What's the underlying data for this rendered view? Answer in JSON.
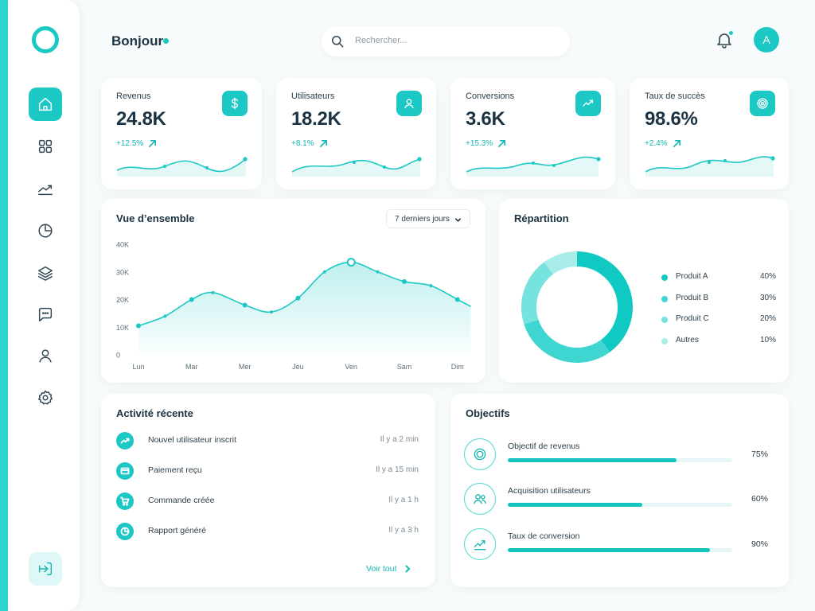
{
  "header": {
    "greeting": "Bonjour",
    "search_placeholder": "Rechercher...",
    "avatar_initial": "A"
  },
  "sidebar": {
    "items": [
      {
        "name": "home-icon",
        "active": true
      },
      {
        "name": "grid-icon",
        "active": false
      },
      {
        "name": "trend-icon",
        "active": false
      },
      {
        "name": "pie-chart-icon",
        "active": false
      },
      {
        "name": "layers-icon",
        "active": false
      },
      {
        "name": "chat-icon",
        "active": false
      },
      {
        "name": "user-icon",
        "active": false
      },
      {
        "name": "gear-icon",
        "active": false
      }
    ],
    "logout_icon": "logout-icon"
  },
  "kpis": [
    {
      "title": "Revenus",
      "value": "24.8K",
      "change": "+12.5%",
      "icon": "dollar-icon"
    },
    {
      "title": "Utilisateurs",
      "value": "18.2K",
      "change": "+8.1%",
      "icon": "user-icon"
    },
    {
      "title": "Conversions",
      "value": "3.6K",
      "change": "+15.3%",
      "icon": "trend-icon"
    },
    {
      "title": "Taux de succès",
      "value": "98.6%",
      "change": "+2.4%",
      "icon": "target-icon"
    }
  ],
  "overview": {
    "title": "Vue d’ensemble",
    "period": "7 derniers jours"
  },
  "repartition": {
    "title": "Répartition"
  },
  "chart_data": [
    {
      "type": "area",
      "title": "Vue d’ensemble",
      "categories": [
        "Lun",
        "Mar",
        "Mer",
        "Jeu",
        "Ven",
        "Sam",
        "Dim"
      ],
      "y_ticks": [
        "40K",
        "30K",
        "20K",
        "10K",
        "0"
      ],
      "ylim": [
        0,
        40000
      ],
      "x": [
        0,
        0.5,
        1,
        1.4,
        2,
        2.5,
        3,
        3.5,
        4,
        4.5,
        5,
        5.5,
        6,
        6.25
      ],
      "values": [
        10500,
        14000,
        20000,
        22500,
        18000,
        15500,
        20500,
        30000,
        33500,
        30000,
        26500,
        25000,
        20000,
        17500
      ],
      "highlight_index": 8,
      "color": "#1cc8c4",
      "grid": false
    },
    {
      "type": "pie",
      "title": "Répartition",
      "labels": [
        "Produit A",
        "Produit B",
        "Produit C",
        "Autres"
      ],
      "values": [
        40,
        30,
        20,
        10
      ],
      "display": [
        "40%",
        "30%",
        "20%",
        "10%"
      ],
      "colors": [
        "#11c9c3",
        "#3fd5d0",
        "#76e3df",
        "#a8edea"
      ]
    }
  ],
  "activity": {
    "title": "Activité récente",
    "items": [
      {
        "label": "Nouvel utilisateur inscrit",
        "time": "Il y a 2 min",
        "icon": "trend-icon"
      },
      {
        "label": "Paiement reçu",
        "time": "Il y a 15 min",
        "icon": "card-icon"
      },
      {
        "label": "Commande créée",
        "time": "Il y a 1 h",
        "icon": "cart-icon"
      },
      {
        "label": "Rapport généré",
        "time": "Il y a 3 h",
        "icon": "pie-chart-icon"
      }
    ],
    "see_all": "Voir tout"
  },
  "goals": {
    "title": "Objectifs",
    "items": [
      {
        "label": "Objectif de revenus",
        "percent": 75,
        "display": "75%",
        "icon": "target-icon"
      },
      {
        "label": "Acquisition utilisateurs",
        "percent": 60,
        "display": "60%",
        "icon": "users-icon"
      },
      {
        "label": "Taux de conversion",
        "percent": 90,
        "display": "90%",
        "icon": "trend-icon"
      }
    ]
  },
  "colors": {
    "accent": "#1cc8c4",
    "text": "#1b3342",
    "background": "#f7fbfb"
  }
}
